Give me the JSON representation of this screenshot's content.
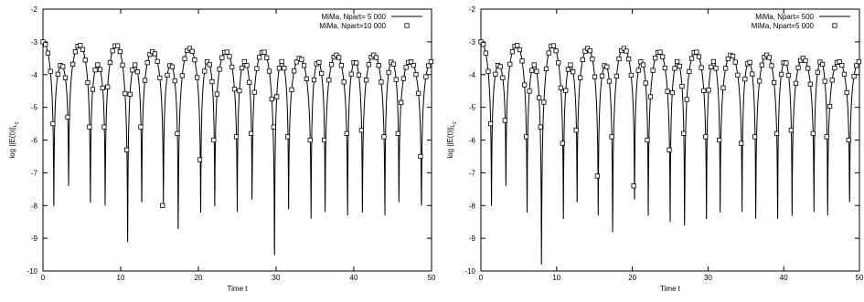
{
  "chart_data": [
    {
      "type": "line",
      "xlabel": "Time t",
      "ylabel": "log ||E(t)||",
      "ylabel_sub": "L",
      "ylabel_sup": "2",
      "xlim": [
        0,
        50
      ],
      "ylim": [
        -10,
        -2
      ],
      "xticks": [
        0,
        10,
        20,
        30,
        40,
        50
      ],
      "yticks": [
        -10,
        -9,
        -8,
        -7,
        -6,
        -5,
        -4,
        -3,
        -2
      ],
      "legend_position": "top-right",
      "series": [
        {
          "name": "MiMa, Npart= 5 000",
          "style": "line",
          "color": "#000000"
        },
        {
          "name": "MiMa, Npart=10 000",
          "style": "square-markers",
          "color": "#000000"
        }
      ],
      "minima": [
        {
          "t": 1.4,
          "v": -8.0
        },
        {
          "t": 3.3,
          "v": -7.4
        },
        {
          "t": 6.1,
          "v": -7.9
        },
        {
          "t": 8.0,
          "v": -8.0
        },
        {
          "t": 10.9,
          "v": -9.1
        },
        {
          "t": 12.7,
          "v": -7.9
        },
        {
          "t": 15.5,
          "v": -8.0
        },
        {
          "t": 17.4,
          "v": -8.7
        },
        {
          "t": 20.3,
          "v": -8.2
        },
        {
          "t": 22.1,
          "v": -8.0
        },
        {
          "t": 25.0,
          "v": -8.2
        },
        {
          "t": 26.9,
          "v": -7.8
        },
        {
          "t": 29.8,
          "v": -9.5
        },
        {
          "t": 31.6,
          "v": -8.1
        },
        {
          "t": 34.5,
          "v": -8.4
        },
        {
          "t": 36.3,
          "v": -8.2
        },
        {
          "t": 39.2,
          "v": -8.3
        },
        {
          "t": 41.1,
          "v": -8.2
        },
        {
          "t": 44.0,
          "v": -8.3
        },
        {
          "t": 45.8,
          "v": -7.9
        },
        {
          "t": 48.7,
          "v": -8.0
        }
      ],
      "peaks": [
        -3.0,
        -3.7,
        -3.1,
        -3.7,
        -3.1,
        -3.7,
        -3.3,
        -3.7,
        -3.2,
        -3.6,
        -3.3,
        -3.6,
        -3.3,
        -3.6,
        -3.5,
        -3.6,
        -3.4,
        -3.6,
        -3.4,
        -3.6,
        -3.6,
        -3.6
      ],
      "marker_lows": [
        -5.5,
        -5.3,
        -5.6,
        -5.6,
        -6.3,
        -5.6,
        -8.0,
        -5.8,
        -6.6,
        -6.0,
        -5.9,
        -5.8,
        -5.6,
        -5.9,
        -6.0,
        -6.0,
        -5.8,
        -5.7,
        -5.9,
        -5.8,
        -6.5
      ]
    },
    {
      "type": "line",
      "xlabel": "Time t",
      "ylabel": "log ||E(t)||",
      "ylabel_sub": "L",
      "ylabel_sup": "2",
      "xlim": [
        0,
        50
      ],
      "ylim": [
        -10,
        -2
      ],
      "xticks": [
        0,
        10,
        20,
        30,
        40,
        50
      ],
      "yticks": [
        -10,
        -9,
        -8,
        -7,
        -6,
        -5,
        -4,
        -3,
        -2
      ],
      "legend_position": "top-right",
      "series": [
        {
          "name": "MiMa, Npart=   500",
          "style": "line",
          "color": "#000000"
        },
        {
          "name": "MiMa, Npart=5 000",
          "style": "square-markers",
          "color": "#000000"
        }
      ],
      "minima": [
        {
          "t": 1.4,
          "v": -8.0
        },
        {
          "t": 3.3,
          "v": -7.4
        },
        {
          "t": 6.1,
          "v": -8.2
        },
        {
          "t": 8.0,
          "v": -9.8
        },
        {
          "t": 10.9,
          "v": -8.4
        },
        {
          "t": 12.7,
          "v": -7.9
        },
        {
          "t": 15.5,
          "v": -8.3
        },
        {
          "t": 17.4,
          "v": -8.8
        },
        {
          "t": 20.3,
          "v": -7.8
        },
        {
          "t": 22.1,
          "v": -8.3
        },
        {
          "t": 25.0,
          "v": -8.5
        },
        {
          "t": 26.9,
          "v": -8.6
        },
        {
          "t": 29.8,
          "v": -8.4
        },
        {
          "t": 31.6,
          "v": -8.2
        },
        {
          "t": 34.5,
          "v": -8.2
        },
        {
          "t": 36.3,
          "v": -8.4
        },
        {
          "t": 39.2,
          "v": -8.4
        },
        {
          "t": 41.1,
          "v": -8.3
        },
        {
          "t": 44.0,
          "v": -8.2
        },
        {
          "t": 45.8,
          "v": -8.3
        },
        {
          "t": 48.7,
          "v": -7.9
        }
      ],
      "peaks": [
        -3.0,
        -3.7,
        -3.1,
        -3.7,
        -3.1,
        -3.7,
        -3.2,
        -3.7,
        -3.2,
        -3.6,
        -3.3,
        -3.6,
        -3.3,
        -3.6,
        -3.4,
        -3.6,
        -3.4,
        -3.6,
        -3.5,
        -3.6,
        -3.6,
        -3.6
      ],
      "marker_lows": [
        -5.5,
        -5.4,
        -5.9,
        -5.6,
        -6.1,
        -5.7,
        -7.1,
        -5.9,
        -7.4,
        -6.0,
        -6.3,
        -5.8,
        -5.9,
        -6.0,
        -6.1,
        -5.9,
        -5.8,
        -5.7,
        -5.8,
        -5.9,
        -6.0
      ]
    }
  ]
}
